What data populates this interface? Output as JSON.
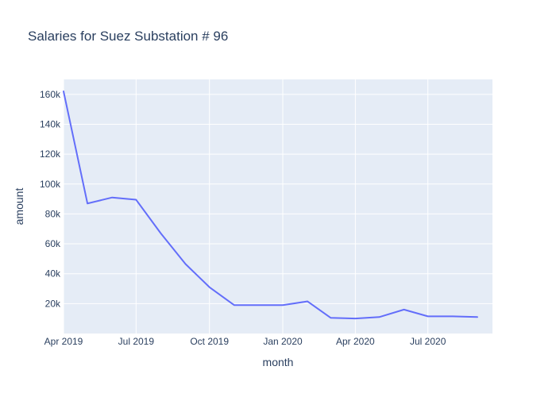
{
  "chart_data": {
    "type": "line",
    "title": "Salaries for Suez Substation # 96",
    "xlabel": "month",
    "ylabel": "amount",
    "x_axis_type": "date",
    "xlim": [
      "2019-04-01",
      "2020-09-20"
    ],
    "ylim": [
      0,
      170000
    ],
    "x_ticks": [
      {
        "date": "2019-04-01",
        "label": "Apr 2019"
      },
      {
        "date": "2019-07-01",
        "label": "Jul 2019"
      },
      {
        "date": "2019-10-01",
        "label": "Oct 2019"
      },
      {
        "date": "2020-01-01",
        "label": "Jan 2020"
      },
      {
        "date": "2020-04-01",
        "label": "Apr 2020"
      },
      {
        "date": "2020-07-01",
        "label": "Jul 2020"
      }
    ],
    "y_ticks": [
      {
        "value": 20000,
        "label": "20k"
      },
      {
        "value": 40000,
        "label": "40k"
      },
      {
        "value": 60000,
        "label": "60k"
      },
      {
        "value": 80000,
        "label": "80k"
      },
      {
        "value": 100000,
        "label": "100k"
      },
      {
        "value": 120000,
        "label": "120k"
      },
      {
        "value": 140000,
        "label": "140k"
      },
      {
        "value": 160000,
        "label": "160k"
      }
    ],
    "grid": true,
    "legend": "none",
    "colors": {
      "plot_background": "#e5ecf6",
      "gridline": "#ffffff",
      "line": "#636efa",
      "text": "#2a3f5f"
    },
    "series": [
      {
        "x": [
          "2019-04-01",
          "2019-05-01",
          "2019-06-01",
          "2019-07-01",
          "2019-08-01",
          "2019-09-01",
          "2019-10-01",
          "2019-11-01",
          "2019-12-01",
          "2020-01-01",
          "2020-02-01",
          "2020-03-01",
          "2020-04-01",
          "2020-05-01",
          "2020-06-01",
          "2020-07-01",
          "2020-08-01",
          "2020-09-01"
        ],
        "y": [
          162000,
          87000,
          91000,
          89500,
          67000,
          46500,
          31000,
          19000,
          19000,
          19000,
          21500,
          10500,
          10000,
          11000,
          16000,
          11500,
          11500,
          11000
        ]
      }
    ]
  }
}
